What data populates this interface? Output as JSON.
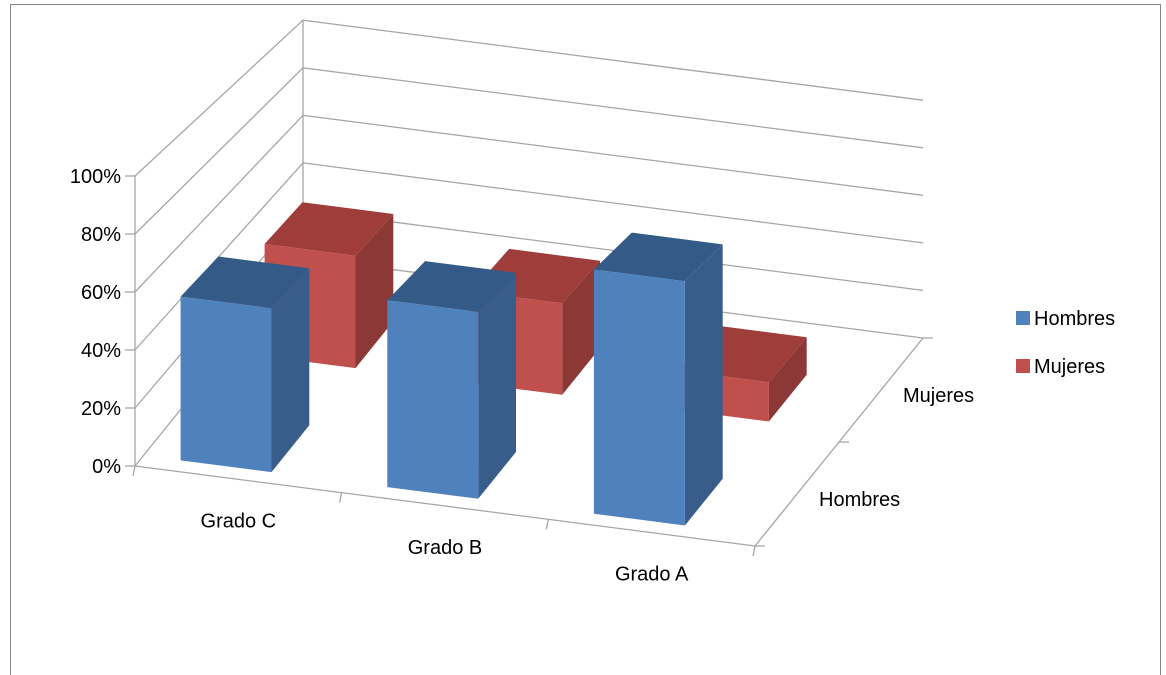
{
  "chart_data": {
    "type": "bar",
    "subtype": "3d-column",
    "title": "",
    "categories": [
      "Grado C",
      "Grado B",
      "Grado A"
    ],
    "series": [
      {
        "name": "Hombres",
        "values": [
          57,
          65,
          85
        ]
      },
      {
        "name": "Mujeres",
        "values": [
          43,
          35,
          15
        ]
      }
    ],
    "ylim": [
      0,
      100
    ],
    "yticks": [
      "0%",
      "20%",
      "40%",
      "60%",
      "80%",
      "100%"
    ],
    "ytick_values": [
      0,
      20,
      40,
      60,
      80,
      100
    ],
    "depth_labels": [
      "Hombres",
      "Mujeres"
    ],
    "grid": true,
    "legend": "right"
  },
  "colors": {
    "Hombres": {
      "front": "#4f81bd",
      "side": "#385d8a",
      "top": "#345a88"
    },
    "Mujeres": {
      "front": "#c0504d",
      "side": "#8c3836",
      "top": "#9e3d3a"
    },
    "grid": "#a6a6a6",
    "frame": "#868686"
  }
}
